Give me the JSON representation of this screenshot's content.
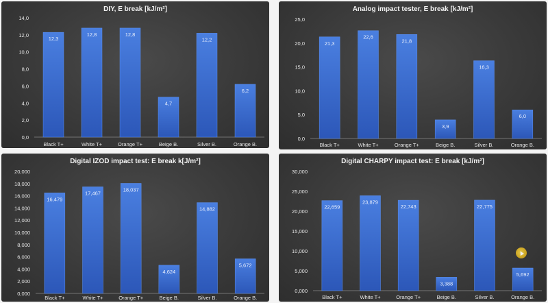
{
  "chart_data": [
    {
      "type": "bar",
      "title": "DIY, E break [kJ/m²]",
      "categories": [
        "Black T+",
        "White T+",
        "Orange T+",
        "Beige B.",
        "Silver B.",
        "Orange B."
      ],
      "values": [
        12.3,
        12.8,
        12.8,
        4.7,
        12.2,
        6.2
      ],
      "value_labels": [
        "12,3",
        "12,8",
        "12,8",
        "4,7",
        "12,2",
        "6,2"
      ],
      "ylim": [
        0,
        14
      ],
      "yticks": [
        "0,0",
        "2,0",
        "4,0",
        "6,0",
        "8,0",
        "10,0",
        "12,0",
        "14,0"
      ],
      "grid": false,
      "legend": false
    },
    {
      "type": "bar",
      "title": "Analog impact tester, E break [kJ/m²]",
      "categories": [
        "Black T+",
        "White T+",
        "Orange T+",
        "Beige B.",
        "Silver B.",
        "Orange B."
      ],
      "values": [
        21.3,
        22.6,
        21.8,
        3.9,
        16.3,
        6.0
      ],
      "value_labels": [
        "21,3",
        "22,6",
        "21,8",
        "3,9",
        "16,3",
        "6,0"
      ],
      "ylim": [
        0,
        25
      ],
      "yticks": [
        "0,0",
        "5,0",
        "10,0",
        "15,0",
        "20,0",
        "25,0"
      ],
      "grid": false,
      "legend": false
    },
    {
      "type": "bar",
      "title": "Digital IZOD impact test: E break k[J/m²]",
      "categories": [
        "Black T+",
        "White T+",
        "Orange T+",
        "Beige B.",
        "Silver B.",
        "Orange B."
      ],
      "values": [
        16.479,
        17.467,
        18.037,
        4.624,
        14.882,
        5.672
      ],
      "value_labels": [
        "16,479",
        "17,467",
        "18,037",
        "4,624",
        "14,882",
        "5,672"
      ],
      "ylim": [
        0,
        20
      ],
      "yticks": [
        "0,000",
        "2,000",
        "4,000",
        "6,000",
        "8,000",
        "10,000",
        "12,000",
        "14,000",
        "16,000",
        "18,000",
        "20,000"
      ],
      "grid": false,
      "legend": false
    },
    {
      "type": "bar",
      "title": "Digital CHARPY impact test: E break [kJ/m²]",
      "categories": [
        "Black T+",
        "White T+",
        "Orange T+",
        "Beige B.",
        "Silver B.",
        "Orange B."
      ],
      "values": [
        22.659,
        23.879,
        22.743,
        3.388,
        22.775,
        5.692
      ],
      "value_labels": [
        "22,659",
        "23,879",
        "22,743",
        "3,388",
        "22,775",
        "5,692"
      ],
      "ylim": [
        0,
        30
      ],
      "yticks": [
        "0,000",
        "5,000",
        "10,000",
        "15,000",
        "20,000",
        "25,000",
        "30,000"
      ],
      "grid": false,
      "legend": false
    }
  ],
  "colors": {
    "bar_top": "#4a7fe0",
    "bar_bottom": "#2c57b8",
    "panel_bg": "#3a3a3a",
    "text": "#e6e6e6"
  },
  "cursor": {
    "icon": "mouse-pointer-highlight-icon"
  }
}
